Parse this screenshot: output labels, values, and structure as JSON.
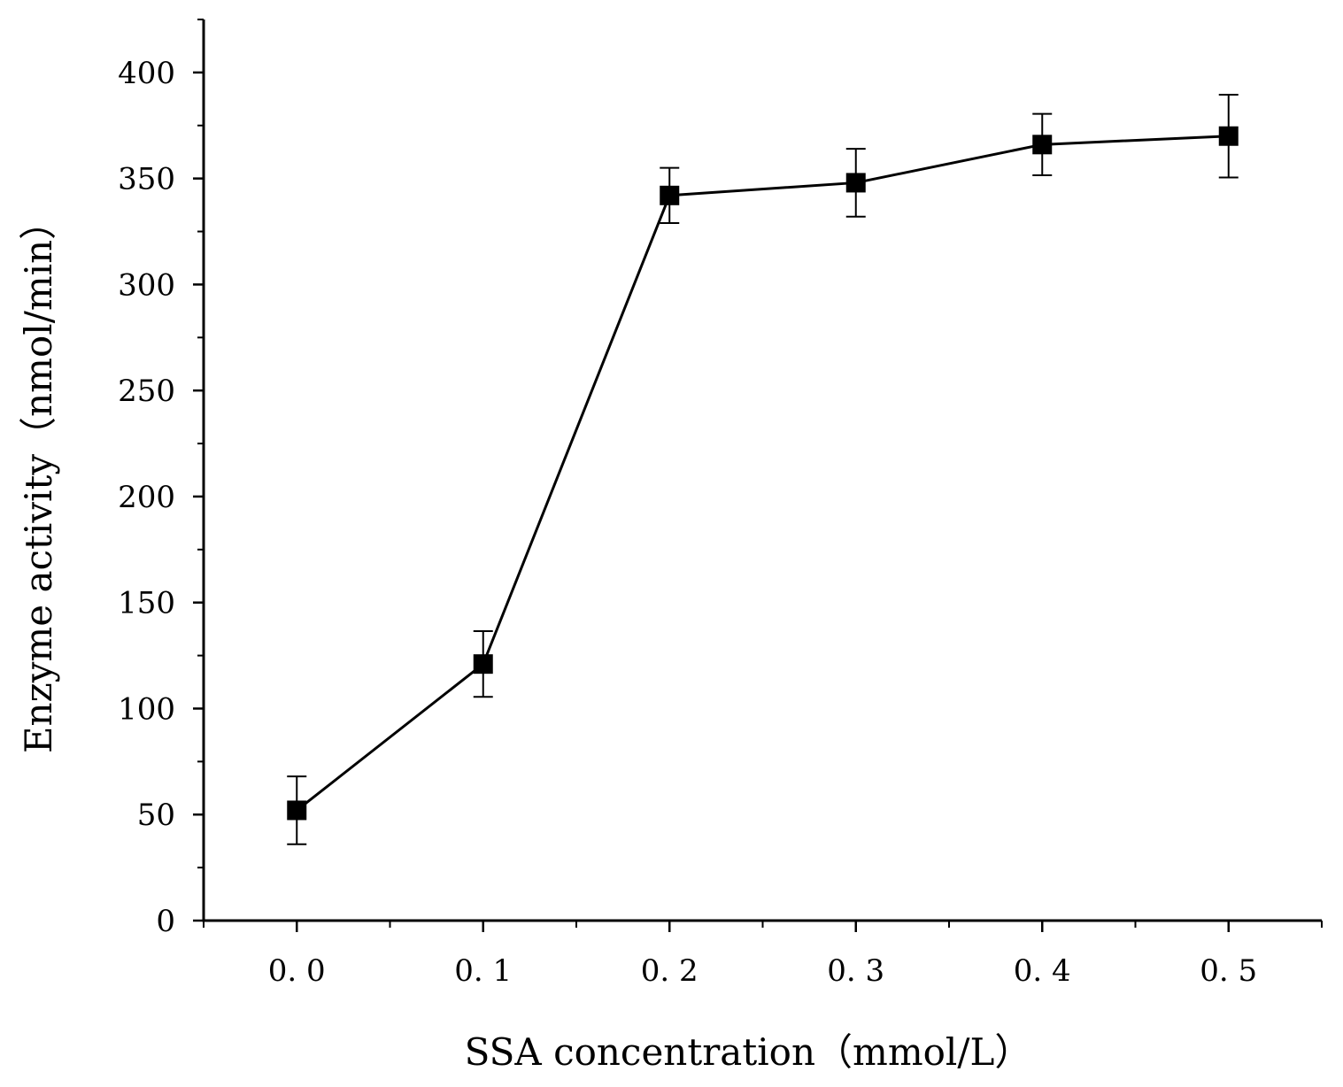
{
  "chart_data": {
    "type": "line",
    "title": "",
    "xlabel": "SSA concentration（mmol/L）",
    "ylabel": "Enzyme activity（nmol/min）",
    "x": [
      0.0,
      0.1,
      0.2,
      0.3,
      0.4,
      0.5
    ],
    "x_tick_labels": [
      "0. 0",
      "0. 1",
      "0. 2",
      "0. 3",
      "0. 4",
      "0. 5"
    ],
    "xlim": [
      -0.05,
      0.55
    ],
    "ylim": [
      0,
      425
    ],
    "y_ticks": [
      0,
      50,
      100,
      150,
      200,
      250,
      300,
      350,
      400
    ],
    "y_tick_labels": [
      "0",
      "50",
      "100",
      "150",
      "200",
      "250",
      "300",
      "350",
      "400"
    ],
    "series": [
      {
        "name": "Enzyme activity",
        "marker": "square",
        "color": "#000000",
        "values": [
          52,
          121,
          342,
          348,
          366,
          370
        ],
        "error": [
          16,
          15.5,
          13,
          16,
          14.5,
          19.5
        ]
      }
    ],
    "grid": false,
    "legend": "none"
  }
}
